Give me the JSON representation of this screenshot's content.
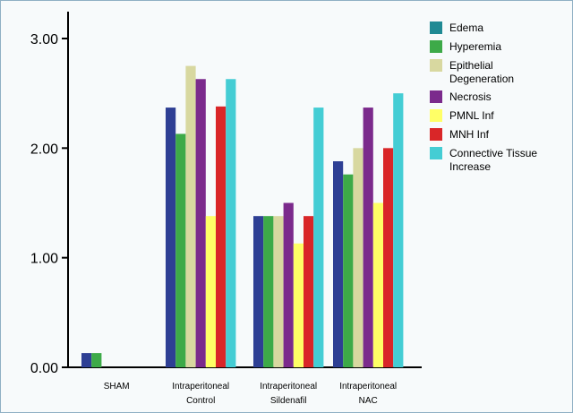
{
  "chart_data": {
    "type": "bar",
    "title": "",
    "xlabel": "",
    "ylabel": "",
    "ylim": [
      0,
      3.0
    ],
    "yticks": [
      "0.00",
      "1.00",
      "2.00",
      "3.00"
    ],
    "grid": false,
    "legend_position": "top-right",
    "categories": [
      [
        "SHAM"
      ],
      [
        "Intraperitoneal",
        "Control"
      ],
      [
        "Intraperitoneal",
        "Sildenafil"
      ],
      [
        "Intraperitoneal",
        "NAC"
      ]
    ],
    "series": [
      {
        "name": [
          "Edema"
        ],
        "color": "#2e3f94",
        "values": [
          0.13,
          2.37,
          1.38,
          1.88
        ]
      },
      {
        "name": [
          "Hyperemia"
        ],
        "color": "#3daa48",
        "values": [
          0.13,
          2.13,
          1.38,
          1.76
        ]
      },
      {
        "name": [
          "Epithelial",
          "Degeneration"
        ],
        "color": "#d8d8a0",
        "values": [
          0,
          2.75,
          1.38,
          2.0
        ]
      },
      {
        "name": [
          "Necrosis"
        ],
        "color": "#7b2a8c",
        "values": [
          0,
          2.63,
          1.5,
          2.37
        ]
      },
      {
        "name": [
          "PMNL Inf"
        ],
        "color": "#ffff66",
        "values": [
          0,
          1.38,
          1.13,
          1.5
        ]
      },
      {
        "name": [
          "MNH Inf"
        ],
        "color": "#d92628",
        "values": [
          0,
          2.38,
          1.38,
          2.0
        ]
      },
      {
        "name": [
          "Connective Tissue",
          "Increase"
        ],
        "color": "#44cdd4",
        "values": [
          0,
          2.63,
          2.37,
          2.5
        ]
      }
    ],
    "legend_swatch_colors": [
      "#1f8a94",
      "#3daa48",
      "#d8d8a0",
      "#7b2a8c",
      "#ffff66",
      "#d92628",
      "#44cdd4"
    ]
  }
}
